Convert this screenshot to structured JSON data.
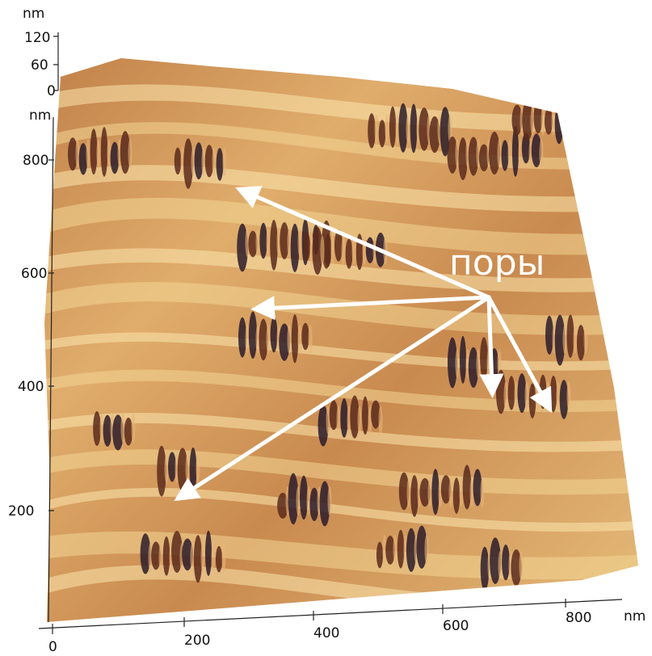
{
  "z_axis": {
    "unit": "nm",
    "ticks": [
      "120",
      "60",
      "0"
    ]
  },
  "y_axis": {
    "unit": "nm",
    "ticks": [
      "800",
      "600",
      "400",
      "200"
    ]
  },
  "x_axis": {
    "ticks": [
      "0",
      "200",
      "400",
      "600",
      "800"
    ],
    "unit": "nm"
  },
  "annotation": {
    "label": "поры"
  }
}
